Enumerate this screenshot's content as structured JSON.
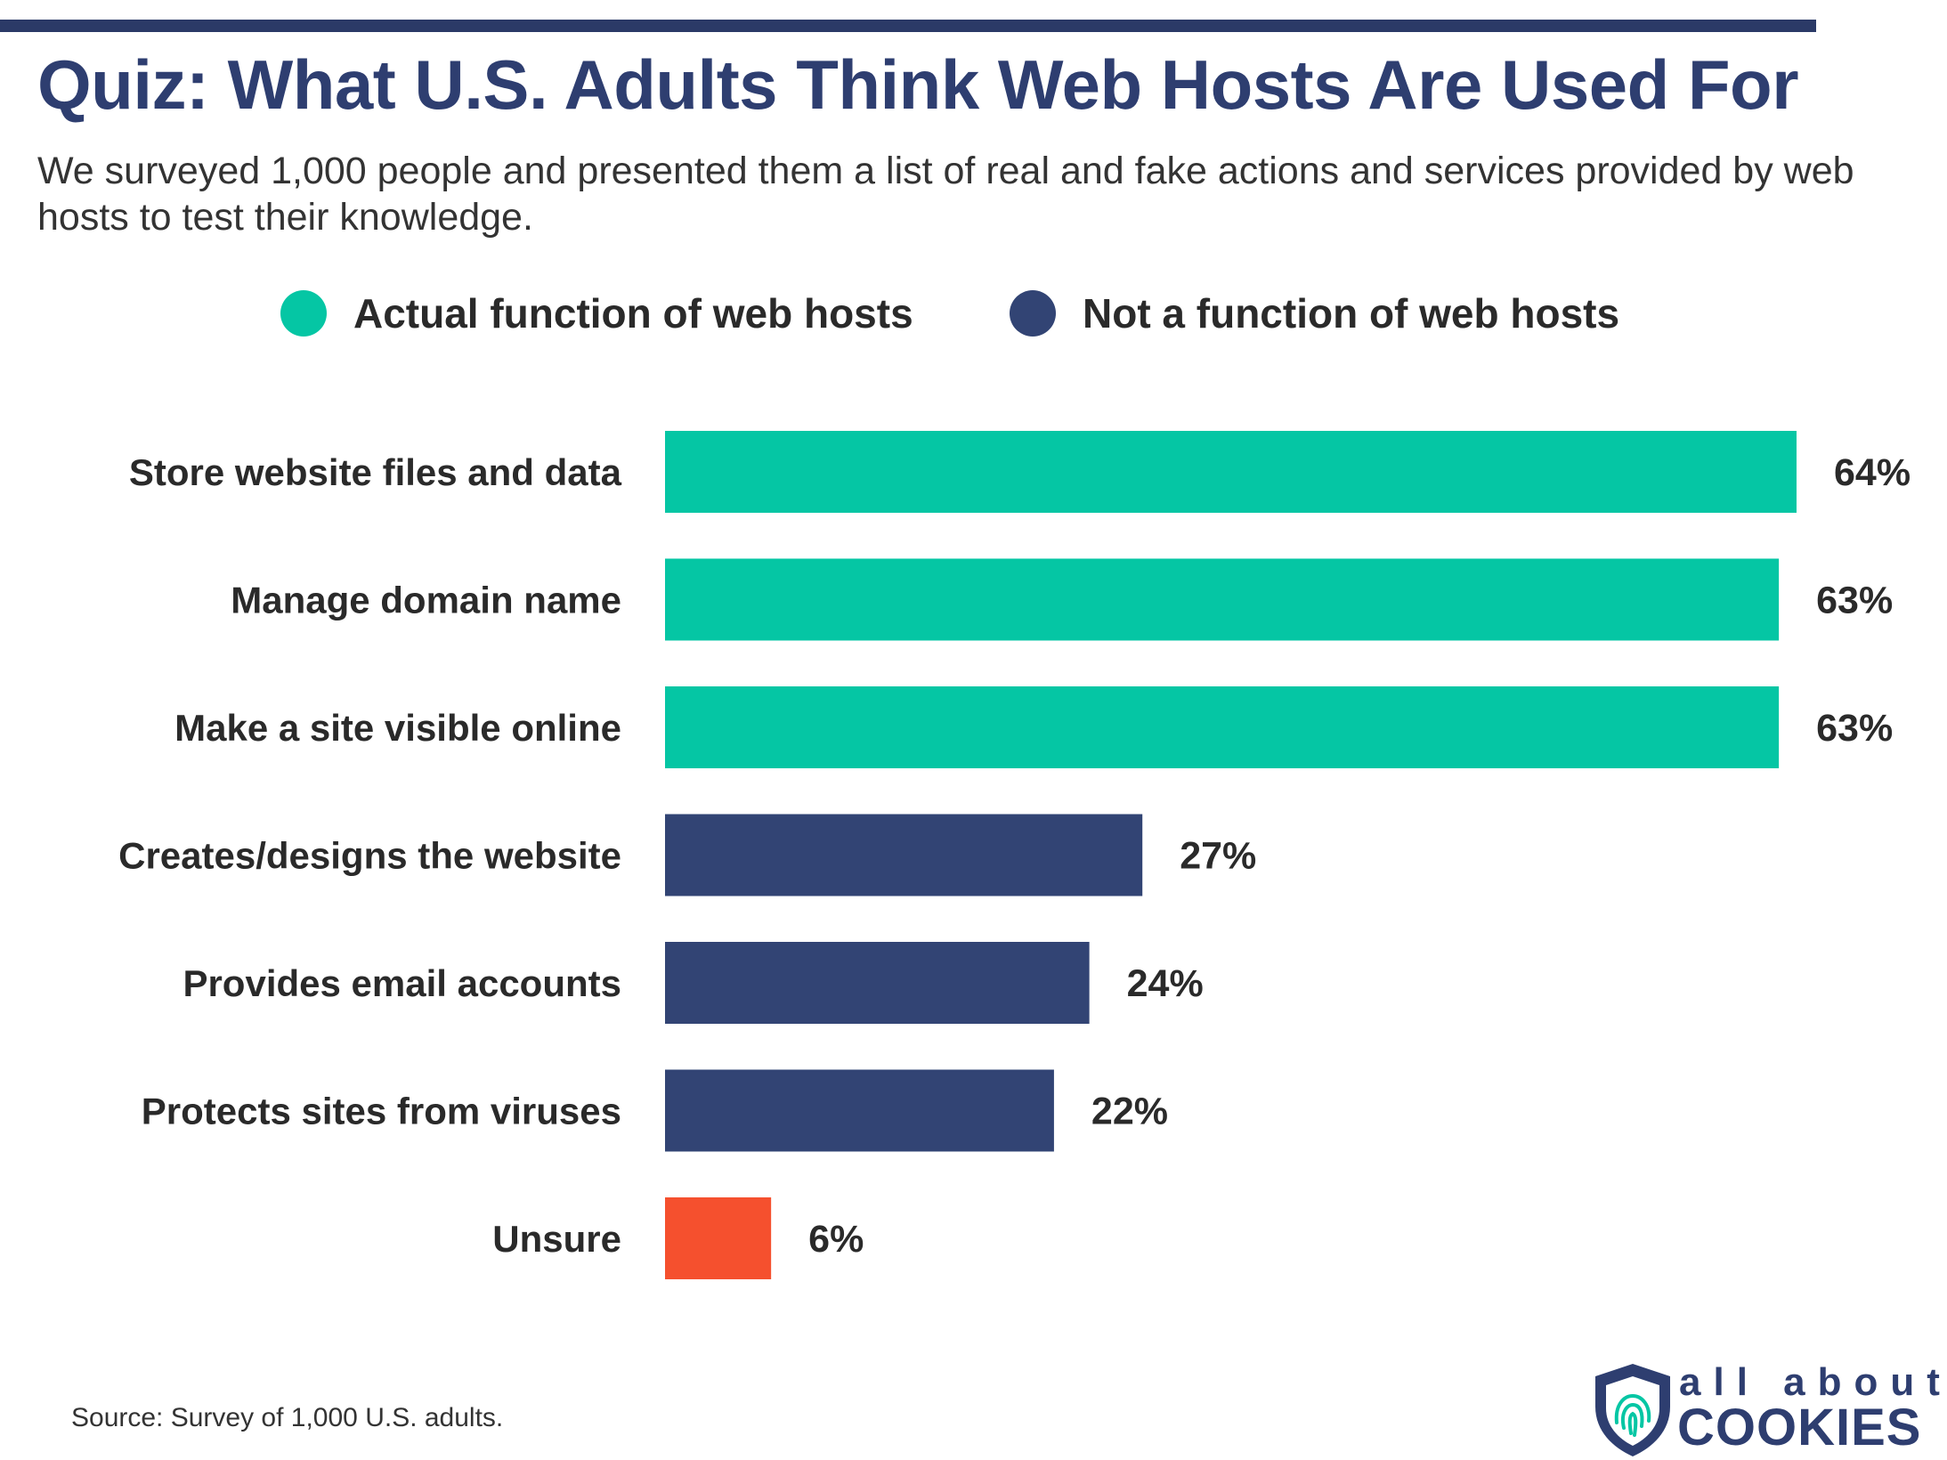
{
  "title": "Quiz: What U.S. Adults Think Web Hosts Are Used For",
  "subtitle": "We surveyed 1,000 people and presented them a list of real and fake actions and services provided by web hosts to test their knowledge.",
  "legend": [
    {
      "label": "Actual function of web hosts",
      "color": "#05c6a4"
    },
    {
      "label": "Not a function of web hosts",
      "color": "#324474"
    }
  ],
  "chart_data": {
    "type": "bar",
    "orientation": "horizontal",
    "categories": [
      "Store website files and data",
      "Manage domain name",
      "Make a site visible online",
      "Creates/designs the website",
      "Provides email accounts",
      "Protects sites from viruses",
      "Unsure"
    ],
    "values": [
      64,
      63,
      63,
      27,
      24,
      22,
      6
    ],
    "value_labels": [
      "64%",
      "63%",
      "63%",
      "27%",
      "24%",
      "22%",
      "6%"
    ],
    "colors": [
      "#05c6a4",
      "#05c6a4",
      "#05c6a4",
      "#324474",
      "#324474",
      "#324474",
      "#f5502e"
    ],
    "xlim": [
      0,
      64
    ],
    "grid": false,
    "legend_position": "top"
  },
  "source": "Source: Survey of 1,000 U.S. adults.",
  "logo": {
    "line1": "all about",
    "line2": "COOKIES",
    "color": "#2e3e70",
    "accent": "#05c6a4"
  }
}
